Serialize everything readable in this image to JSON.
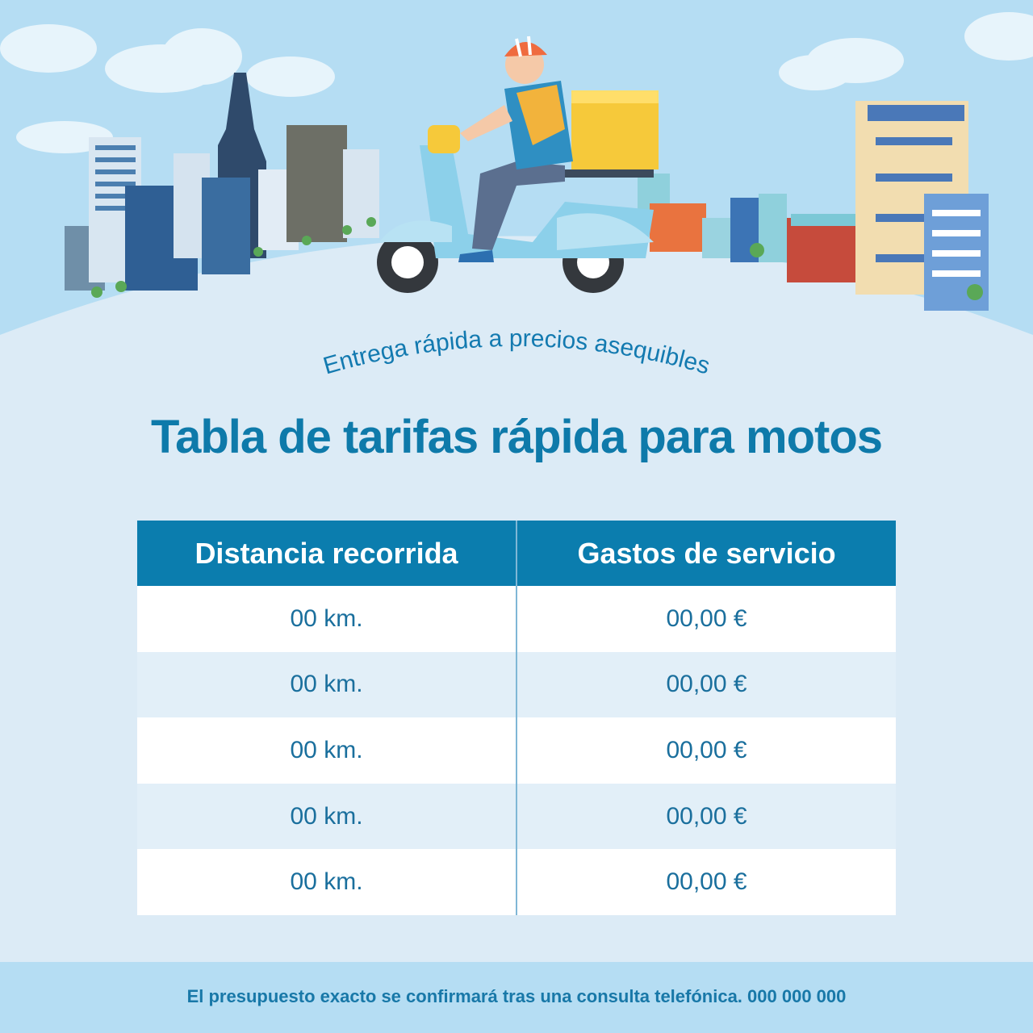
{
  "header": {
    "subtitle": "Entrega rápida a precios asequibles",
    "title": "Tabla de tarifas rápida para motos"
  },
  "table": {
    "headers": [
      "Distancia recorrida",
      "Gastos de servicio"
    ],
    "rows": [
      [
        "00 km.",
        "00,00 €"
      ],
      [
        "00 km.",
        "00,00 €"
      ],
      [
        "00 km.",
        "00,00 €"
      ],
      [
        "00 km.",
        "00,00 €"
      ],
      [
        "00 km.",
        "00,00 €"
      ]
    ]
  },
  "footer": {
    "text": "El presupuesto exacto se confirmará tras una consulta telefónica. 000 000 000"
  },
  "colors": {
    "accent": "#0b7dae",
    "sky": "#b5ddf3",
    "background": "#dcebf6"
  },
  "icons": [
    "delivery-scooter-rider-illustration",
    "city-skyline-illustration"
  ]
}
